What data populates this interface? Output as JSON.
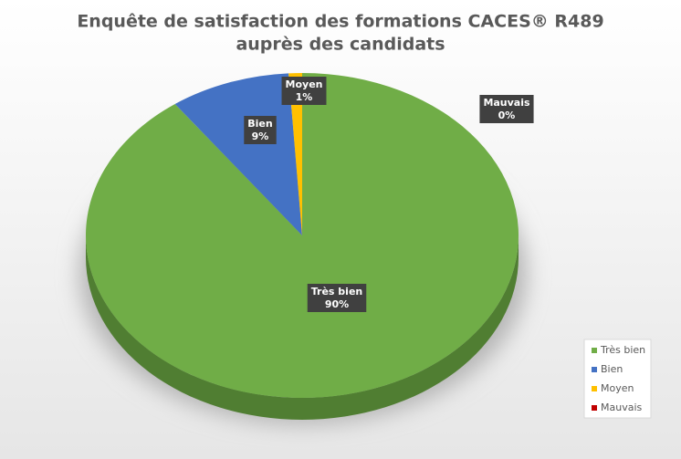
{
  "chart_data": {
    "type": "pie",
    "title": [
      "Enquête de satisfaction des formations CACES® R489",
      "auprès des candidats"
    ],
    "categories": [
      "Très bien",
      "Bien",
      "Moyen",
      "Mauvais"
    ],
    "values": [
      90,
      9,
      1,
      0
    ],
    "value_labels": [
      "90%",
      "9%",
      "1%",
      "0%"
    ],
    "colors": [
      "#70ad47",
      "#4472c4",
      "#ffc000",
      "#c00000"
    ],
    "legend": "right"
  }
}
